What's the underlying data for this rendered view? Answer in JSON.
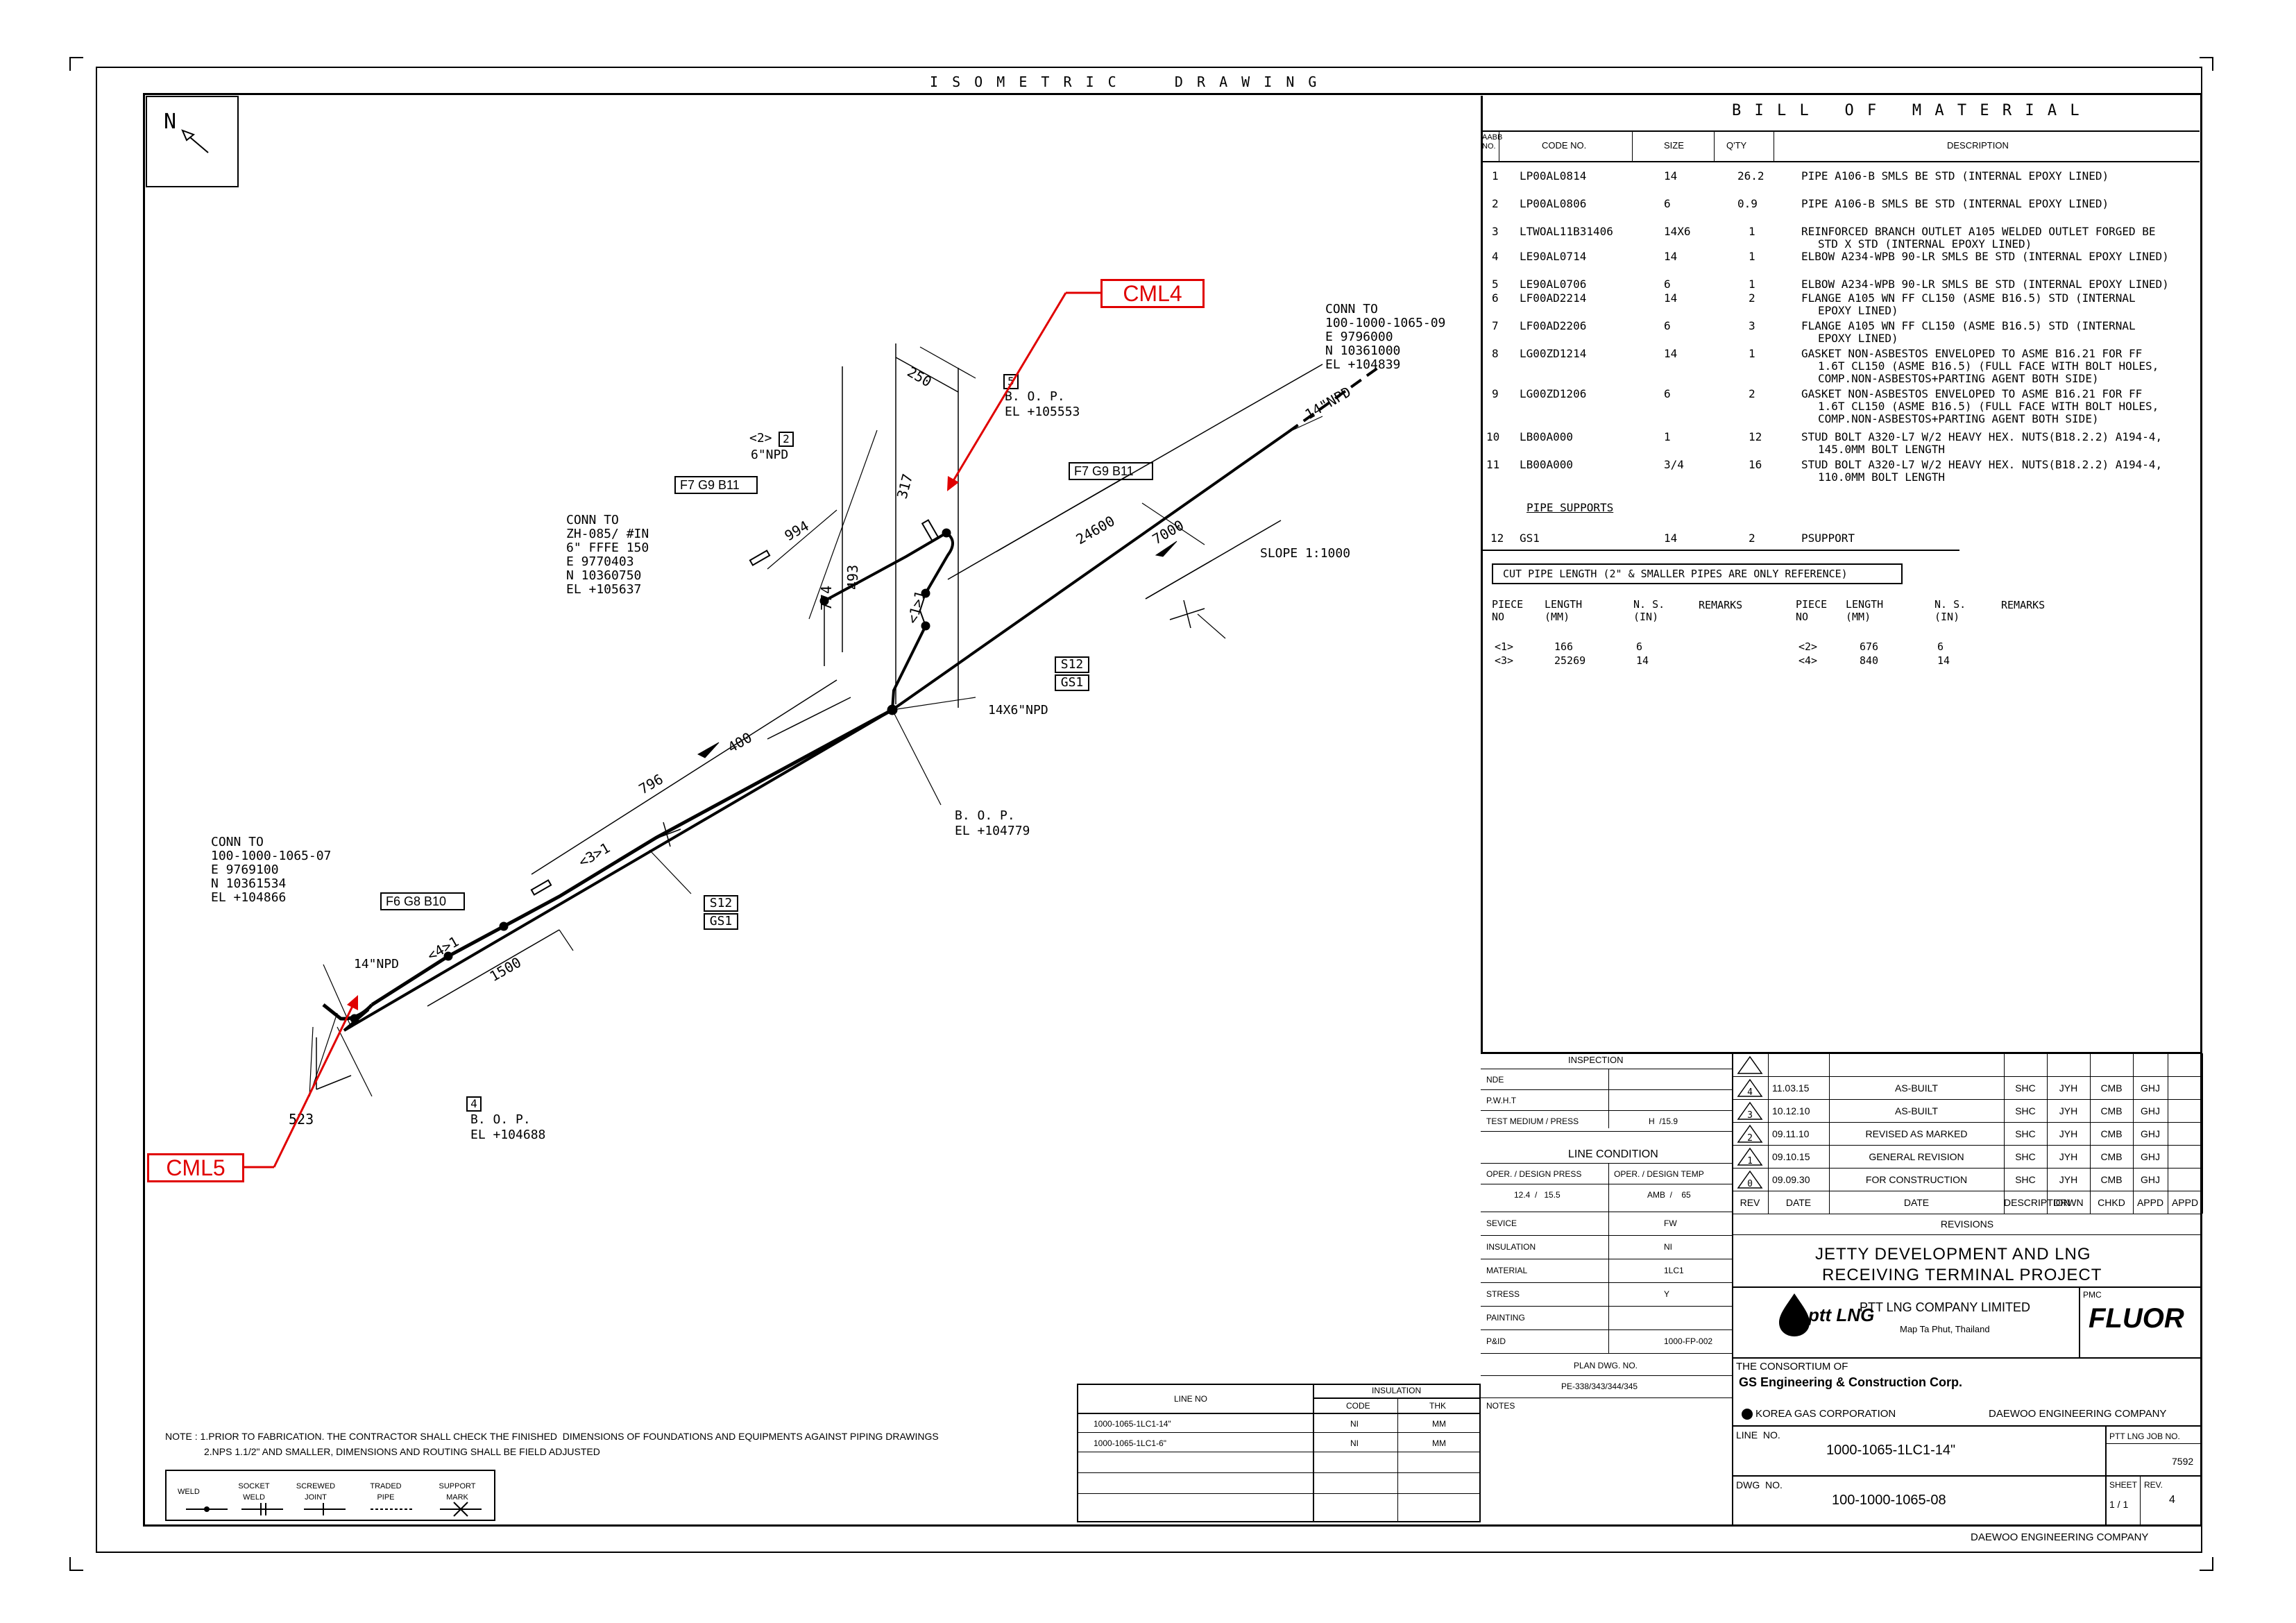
{
  "header": {
    "title": "I S O M E T R I C     D R A W I N G"
  },
  "north": {
    "label": "N"
  },
  "callouts": {
    "cml4": "CML4",
    "cml5": "CML5"
  },
  "drawing": {
    "conn_top": [
      "CONN TO",
      "100-1000-1065-09",
      "E 9796000",
      "N 10361000",
      "EL +104839"
    ],
    "conn_left": [
      "CONN TO",
      "ZH-085/ #IN",
      "6\" FFFE 150",
      "E 9770403",
      "N 10360750",
      "EL +105637"
    ],
    "conn_bottom": [
      "CONN TO",
      "100-1000-1065-07",
      "E 9769100",
      "N 10361534",
      "EL +104866"
    ],
    "bop1": [
      "B. O. P.",
      "EL +105553"
    ],
    "bop1_num": "5",
    "bop2": [
      "B. O. P.",
      "EL +104779"
    ],
    "bop3": [
      "B. O. P.",
      "EL +104688"
    ],
    "bop3_num": "4",
    "npd_top": "14\"NPD",
    "npd_left": "14\"NPD",
    "npd_6": "6\"NPD",
    "piece2": "<2>",
    "piece2_num": "2",
    "branch": "14X6\"NPD",
    "slope": "SLOPE 1:1000",
    "flange_f7_left": "F7 G9 B11",
    "flange_f7_right": "F7 G9 B11",
    "flange_f6": "F6 G8 B10",
    "s12_a": "S12",
    "gs1_a": "GS1",
    "s12_b": "S12",
    "gs1_b": "GS1",
    "dim_250": "250",
    "dim_994": "994",
    "dim_317": "317",
    "dim_774": "774",
    "dim_493": "493",
    "dim_24600": "24600",
    "dim_7000": "7000",
    "dim_796": "796",
    "dim_400": "400",
    "dim_1500": "1500",
    "dim_523": "523",
    "piece1": "<1>1",
    "piece3": "<3>1",
    "piece4": "<4>1"
  },
  "notes": {
    "line1": "NOTE : 1.PRIOR TO FABRICATION. THE CONTRACTOR SHALL CHECK THE FINISHED  DIMENSIONS OF FOUNDATIONS AND EQUIPMENTS AGAINST PIPING DRAWINGS",
    "line2": "2.NPS 1.1/2\" AND SMALLER, DIMENSIONS AND ROUTING SHALL BE FIELD ADJUSTED"
  },
  "legend": [
    "WELD",
    "SOCKET WELD",
    "SCREWED JOINT",
    "TRADED PIPE",
    "SUPPORT MARK"
  ],
  "insulation_table": {
    "headers": [
      "LINE NO",
      "INSULATION",
      "CODE",
      "THK"
    ],
    "rows": [
      [
        "1000-1065-1LC1-14\"",
        "NI",
        "MM"
      ],
      [
        "1000-1065-1LC1-6\"",
        "NI",
        "MM"
      ]
    ]
  },
  "bom": {
    "title": "B I L L   O F   M A T E R I A L",
    "headers": [
      "AABB NO.",
      "CODE NO.",
      "SIZE",
      "Q'TY",
      "DESCRIPTION"
    ],
    "rows": [
      {
        "no": "1",
        "code": "LP00AL0814",
        "size": "14",
        "qty": "26.2",
        "desc": [
          "PIPE A106-B SMLS BE STD (INTERNAL EPOXY LINED)"
        ]
      },
      {
        "no": "2",
        "code": "LP00AL0806",
        "size": "6",
        "qty": "0.9",
        "desc": [
          "PIPE A106-B SMLS BE STD (INTERNAL EPOXY LINED)"
        ]
      },
      {
        "no": "3",
        "code": "LTWOAL11B31406",
        "size": "14X6",
        "qty": "1",
        "desc": [
          "REINFORCED BRANCH OUTLET A105 WELDED OUTLET FORGED BE",
          "STD X STD (INTERNAL EPOXY LINED)"
        ]
      },
      {
        "no": "4",
        "code": "LE90AL0714",
        "size": "14",
        "qty": "1",
        "desc": [
          "ELBOW A234-WPB 90-LR SMLS BE STD (INTERNAL EPOXY LINED)"
        ]
      },
      {
        "no": "5",
        "code": "LE90AL0706",
        "size": "6",
        "qty": "1",
        "desc": [
          "ELBOW A234-WPB 90-LR SMLS BE STD (INTERNAL EPOXY LINED)"
        ]
      },
      {
        "no": "6",
        "code": "LF00AD2214",
        "size": "14",
        "qty": "2",
        "desc": [
          "FLANGE A105 WN FF CL150 (ASME B16.5) STD (INTERNAL",
          "EPOXY LINED)"
        ]
      },
      {
        "no": "7",
        "code": "LF00AD2206",
        "size": "6",
        "qty": "3",
        "desc": [
          "FLANGE A105 WN FF CL150 (ASME B16.5) STD (INTERNAL",
          "EPOXY LINED)"
        ]
      },
      {
        "no": "8",
        "code": "LG00ZD1214",
        "size": "14",
        "qty": "1",
        "desc": [
          "GASKET NON-ASBESTOS ENVELOPED TO ASME B16.21 FOR FF",
          "1.6T CL150 (ASME B16.5) (FULL FACE WITH BOLT HOLES,",
          "COMP.NON-ASBESTOS+PARTING AGENT BOTH SIDE)"
        ]
      },
      {
        "no": "9",
        "code": "LG00ZD1206",
        "size": "6",
        "qty": "2",
        "desc": [
          "GASKET NON-ASBESTOS ENVELOPED TO ASME B16.21 FOR FF",
          "1.6T CL150 (ASME B16.5) (FULL FACE WITH BOLT HOLES,",
          "COMP.NON-ASBESTOS+PARTING AGENT BOTH SIDE)"
        ]
      },
      {
        "no": "10",
        "code": "LB00A000",
        "size": "1",
        "qty": "12",
        "desc": [
          "STUD BOLT A320-L7 W/2 HEAVY HEX. NUTS(B18.2.2) A194-4,",
          "145.0MM BOLT LENGTH"
        ]
      },
      {
        "no": "11",
        "code": "LB00A000",
        "size": "3/4",
        "qty": "16",
        "desc": [
          "STUD BOLT A320-L7 W/2 HEAVY HEX. NUTS(B18.2.2) A194-4,",
          "110.0MM BOLT LENGTH"
        ]
      }
    ],
    "supports_title": "PIPE SUPPORTS",
    "support_row": {
      "no": "12",
      "code": "GS1",
      "size": "14",
      "qty": "2",
      "desc": "PSUPPORT"
    }
  },
  "cut_pipe": {
    "title": "CUT PIPE LENGTH (2\" & SMALLER PIPES ARE ONLY REFERENCE)",
    "headers": [
      "PIECE NO",
      "LENGTH (MM)",
      "N. S. (IN)",
      "REMARKS"
    ],
    "left": [
      [
        "<1>",
        "166",
        "6"
      ],
      [
        "<3>",
        "25269",
        "14"
      ]
    ],
    "right": [
      [
        "<2>",
        "676",
        "6"
      ],
      [
        "<4>",
        "840",
        "14"
      ]
    ]
  },
  "inspection": {
    "title": "INSPECTION",
    "rows": [
      [
        "NDE",
        ""
      ],
      [
        "P.W.H.T",
        ""
      ],
      [
        "TEST MEDIUM / PRESS",
        "H  /15.9"
      ]
    ],
    "line_condition": "LINE CONDITION",
    "press_hdr": "OPER. / DESIGN PRESS",
    "temp_hdr": "OPER. / DESIGN TEMP",
    "press_val": "12.4  /   15.5",
    "temp_val": "AMB  /    65",
    "props": [
      [
        "SEVICE",
        "FW"
      ],
      [
        "INSULATION",
        "NI"
      ],
      [
        "MATERIAL",
        "1LC1"
      ],
      [
        "STRESS",
        "Y"
      ],
      [
        "PAINTING",
        ""
      ],
      [
        "P&ID",
        "1000-FP-002"
      ]
    ],
    "plan_dwg_hdr": "PLAN DWG. NO.",
    "plan_dwg_val": "PE-338/343/344/345",
    "notes_label": "NOTES"
  },
  "revisions": {
    "rows": [
      {
        "rev": "4",
        "date": "11.03.15",
        "desc": "AS-BUILT",
        "drwn": "SHC",
        "chkd": "JYH",
        "appd": "CMB",
        "appd2": "GHJ"
      },
      {
        "rev": "3",
        "date": "10.12.10",
        "desc": "AS-BUILT",
        "drwn": "SHC",
        "chkd": "JYH",
        "appd": "CMB",
        "appd2": "GHJ"
      },
      {
        "rev": "2",
        "date": "09.11.10",
        "desc": "REVISED AS MARKED",
        "drwn": "SHC",
        "chkd": "JYH",
        "appd": "CMB",
        "appd2": "GHJ"
      },
      {
        "rev": "1",
        "date": "09.10.15",
        "desc": "GENERAL REVISION",
        "drwn": "SHC",
        "chkd": "JYH",
        "appd": "CMB",
        "appd2": "GHJ"
      },
      {
        "rev": "0",
        "date": "09.09.30",
        "desc": "FOR CONSTRUCTION",
        "drwn": "SHC",
        "chkd": "JYH",
        "appd": "CMB",
        "appd2": "GHJ"
      }
    ],
    "headers": [
      "REV",
      "DATE",
      "DESCRIPTION",
      "DRWN",
      "CHKD",
      "APPD",
      "APPD"
    ],
    "title": "REVISIONS"
  },
  "titleblock": {
    "project1": "JETTY DEVELOPMENT AND LNG",
    "project2": "RECEIVING TERMINAL PROJECT",
    "ptt_logo": "ptt LNG",
    "company": "PTT LNG COMPANY LIMITED",
    "location": "Map Ta Phut, Thailand",
    "pmc": "PMC",
    "fluor": "FLUOR",
    "consortium": "THE CONSORTIUM OF",
    "gs": "GS Engineering & Construction Corp.",
    "kogas": "KOREA GAS CORPORATION",
    "daewoo": "DAEWOO ENGINEERING COMPANY",
    "line_no_label": "LINE  NO.",
    "line_no": "1000-1065-1LC1-14\"",
    "job_no_label": "PTT LNG JOB NO.",
    "job_no": "7592",
    "dwg_no_label": "DWG  NO.",
    "dwg_no": "100-1000-1065-08",
    "sheet_label": "SHEET",
    "sheet": "1 / 1",
    "rev_label": "REV.",
    "rev": "4",
    "footer": "DAEWOO ENGINEERING COMPANY"
  }
}
